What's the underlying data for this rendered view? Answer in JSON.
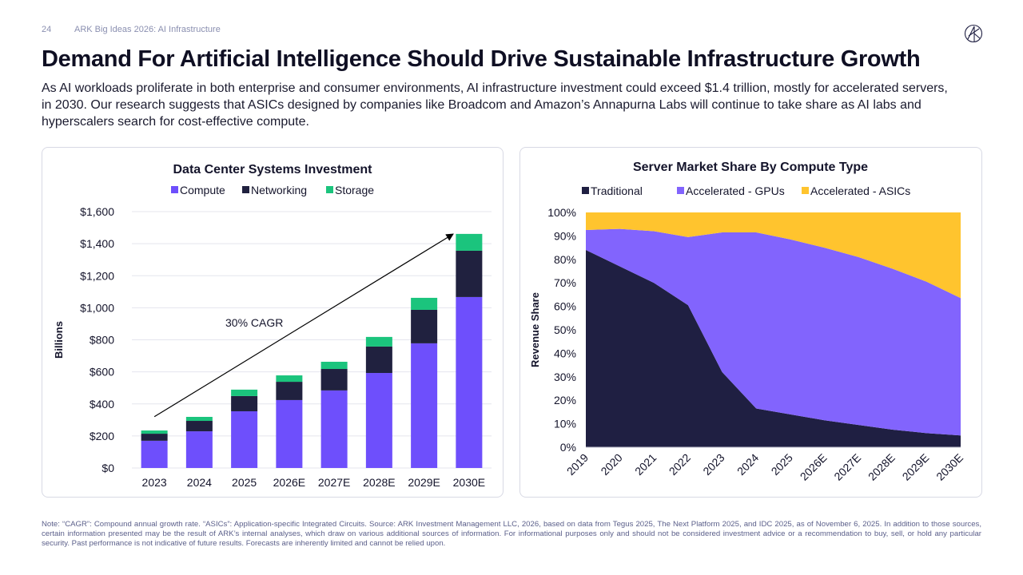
{
  "header": {
    "page_number": "24",
    "deck_title": "ARK Big Ideas 2026: AI Infrastructure",
    "logo_icon": "ark-logo-icon"
  },
  "title": "Demand For Artificial Intelligence Should Drive Sustainable Infrastructure Growth",
  "subtitle": "As AI workloads proliferate in both enterprise and consumer environments, AI infrastructure investment could exceed $1.4 trillion, mostly for accelerated servers, in 2030. Our research suggests that ASICs designed by companies like Broadcom and Amazon’s Annapurna Labs will continue to take share as AI labs and hyperscalers search for cost-effective compute.",
  "note": "Note: “CAGR”: Compound annual growth rate. “ASICs”: Application-specific Integrated Circuits. Source: ARK Investment Management LLC, 2026, based on data from Tegus 2025, The Next Platform 2025, and IDC 2025, as of November 6, 2025. In addition to those sources, certain information presented may be the result of ARK’s internal analyses, which draw on various additional sources of information. For informational purposes only and should not be considered investment advice or a recommendation to buy, sell, or hold any particular security. Past performance is not indicative of future results. Forecasts are inherently limited and cannot be relied upon.",
  "colors": {
    "compute": "#6e4ffc",
    "networking": "#20213f",
    "storage": "#1bc47d",
    "traditional": "#1f1f42",
    "gpus": "#8264fd",
    "asics": "#ffc42e",
    "grid": "#e4e5ee",
    "text": "#14142b"
  },
  "chart_data": [
    {
      "type": "bar",
      "stacked": true,
      "title": "Data Center Systems Investment",
      "xlabel": "",
      "ylabel": "Billions",
      "categories": [
        "2023",
        "2024",
        "2025",
        "2026E",
        "2027E",
        "2028E",
        "2029E",
        "2030E"
      ],
      "series": [
        {
          "name": "Compute",
          "values": [
            170,
            229,
            354,
            424,
            484,
            593,
            778,
            1067
          ]
        },
        {
          "name": "Networking",
          "values": [
            44,
            65,
            95,
            114,
            134,
            165,
            209,
            289
          ]
        },
        {
          "name": "Storage",
          "values": [
            20,
            25,
            40,
            40,
            45,
            60,
            75,
            105
          ]
        }
      ],
      "ylim": [
        0,
        1600
      ],
      "yticks": [
        0,
        200,
        400,
        600,
        800,
        1000,
        1200,
        1400,
        1600
      ],
      "ytick_labels": [
        "$0",
        "$200",
        "$400",
        "$600",
        "$800",
        "$1,000",
        "$1,200",
        "$1,400",
        "$1,600"
      ],
      "grid": true,
      "legend": "top-center",
      "annotations": [
        {
          "text": "30% CAGR",
          "type": "arrow",
          "from_category": "2023",
          "to_category": "2030E",
          "from_value": 320,
          "to_value": 1460
        }
      ]
    },
    {
      "type": "area",
      "stacked": true,
      "title": "Server Market Share By Compute Type",
      "xlabel": "",
      "ylabel": "Revenue Share",
      "x": [
        "2019",
        "2020",
        "2021",
        "2022",
        "2023",
        "2024",
        "2025",
        "2026E",
        "2027E",
        "2028E",
        "2029E",
        "2030E"
      ],
      "series": [
        {
          "name": "Traditional",
          "values": [
            84,
            77,
            70,
            60.5,
            32,
            16.5,
            14,
            11.5,
            9.5,
            7.5,
            6,
            5
          ]
        },
        {
          "name": "Accelerated - GPUs",
          "values": [
            8.5,
            16,
            22,
            29,
            59.5,
            75,
            74.5,
            73.5,
            71.5,
            68.5,
            64.5,
            58.5
          ]
        },
        {
          "name": "Accelerated - ASICs",
          "values": [
            7.5,
            7,
            8,
            10.5,
            8.5,
            8.5,
            11.5,
            15,
            19,
            24,
            29.5,
            36.5
          ]
        }
      ],
      "ylim": [
        0,
        100
      ],
      "yticks": [
        0,
        10,
        20,
        30,
        40,
        50,
        60,
        70,
        80,
        90,
        100
      ],
      "ytick_labels": [
        "0%",
        "10%",
        "20%",
        "30%",
        "40%",
        "50%",
        "60%",
        "70%",
        "80%",
        "90%",
        "100%"
      ],
      "grid": false,
      "legend": "top-center"
    }
  ]
}
